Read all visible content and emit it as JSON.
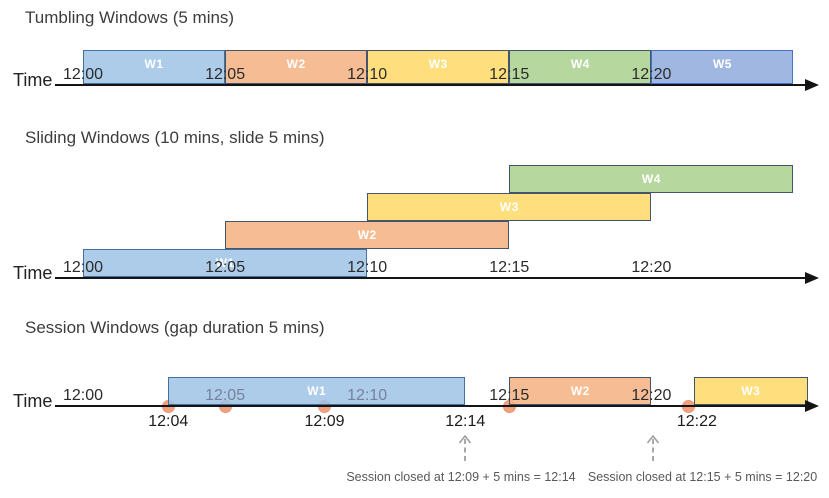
{
  "colors": {
    "blue": {
      "fill": "#9DC3E6",
      "border": "#41719C"
    },
    "periwinkle": {
      "fill": "#8FAADC",
      "border": "#4472C4"
    },
    "orange": {
      "fill": "#F4B183",
      "border": "#44546A"
    },
    "yellow": {
      "fill": "#FFD966",
      "border": "#44546A"
    },
    "green": {
      "fill": "#A9D18E",
      "border": "#44546A"
    },
    "event_dot": "#F3A17F",
    "axis": "#141414",
    "tick_label": "#2b2b2b",
    "muted_tick_label": "#76829b",
    "callout_text": "#595959",
    "callout_arrow": "#9e9e9e",
    "window_label": "#ffffff"
  },
  "sections": [
    {
      "title": "Tumbling Windows (5 mins)",
      "time_axis_label": "Time",
      "axis_labels": [
        {
          "text": "12:00",
          "min": 0
        },
        {
          "text": "12:05",
          "min": 5
        },
        {
          "text": "12:10",
          "min": 10
        },
        {
          "text": "12:15",
          "min": 15
        },
        {
          "text": "12:20",
          "min": 20
        }
      ],
      "windows": [
        {
          "label": "W1",
          "start_min": 0,
          "end_min": 5,
          "color": "blue",
          "row": 0
        },
        {
          "label": "W2",
          "start_min": 5,
          "end_min": 10,
          "color": "orange",
          "row": 0
        },
        {
          "label": "W3",
          "start_min": 10,
          "end_min": 15,
          "color": "yellow",
          "row": 0
        },
        {
          "label": "W4",
          "start_min": 15,
          "end_min": 20,
          "color": "green",
          "row": 0
        },
        {
          "label": "W5",
          "start_min": 20,
          "end_min": 25,
          "color": "periwinkle",
          "row": 0
        }
      ]
    },
    {
      "title": "Sliding Windows (10 mins, slide 5 mins)",
      "time_axis_label": "Time",
      "axis_labels": [
        {
          "text": "12:00",
          "min": 0
        },
        {
          "text": "12:05",
          "min": 5
        },
        {
          "text": "12:10",
          "min": 10
        },
        {
          "text": "12:15",
          "min": 15
        },
        {
          "text": "12:20",
          "min": 20
        }
      ],
      "windows": [
        {
          "label": "W1",
          "start_min": 0,
          "end_min": 10,
          "color": "blue",
          "row": 0
        },
        {
          "label": "W2",
          "start_min": 5,
          "end_min": 15,
          "color": "orange",
          "row": 1
        },
        {
          "label": "W3",
          "start_min": 10,
          "end_min": 20,
          "color": "yellow",
          "row": 2
        },
        {
          "label": "W4",
          "start_min": 15,
          "end_min": 25,
          "color": "green",
          "row": 3
        }
      ]
    },
    {
      "title": "Session Windows (gap duration 5 mins)",
      "time_axis_label": "Time",
      "axis_labels": [
        {
          "text": "12:00",
          "min": 0
        },
        {
          "text": "12:05",
          "min": 5,
          "muted": true
        },
        {
          "text": "12:10",
          "min": 10,
          "muted": true
        },
        {
          "text": "12:15",
          "min": 15
        },
        {
          "text": "12:20",
          "min": 20
        }
      ],
      "windows": [
        {
          "label": "W1",
          "start_min": 3,
          "end_min": 13.45,
          "color": "blue",
          "row": 0
        },
        {
          "label": "W2",
          "start_min": 15,
          "end_min": 20,
          "color": "orange",
          "row": 0
        },
        {
          "label": "W3",
          "start_min": 21.5,
          "end_min": 25.5,
          "color": "yellow",
          "row": 0
        }
      ],
      "events": [
        {
          "min": 3
        },
        {
          "min": 5
        },
        {
          "min": 8.5
        },
        {
          "min": 15
        },
        {
          "min": 21.3
        }
      ],
      "event_labels": [
        {
          "text": "12:04",
          "min": 3
        },
        {
          "text": "12:09",
          "min": 8.5
        },
        {
          "text": "12:14",
          "min": 13.45
        },
        {
          "text": "12:22",
          "min": 21.6
        }
      ],
      "callouts": [
        {
          "text": "Session closed at 12:09 + 5 mins = 12:14",
          "arrow_min": 13.45,
          "text_min": 13.3
        },
        {
          "text": "Session closed at 12:15 + 5 mins = 12:20",
          "arrow_min": 20.05,
          "text_min": 21.8
        }
      ]
    }
  ]
}
